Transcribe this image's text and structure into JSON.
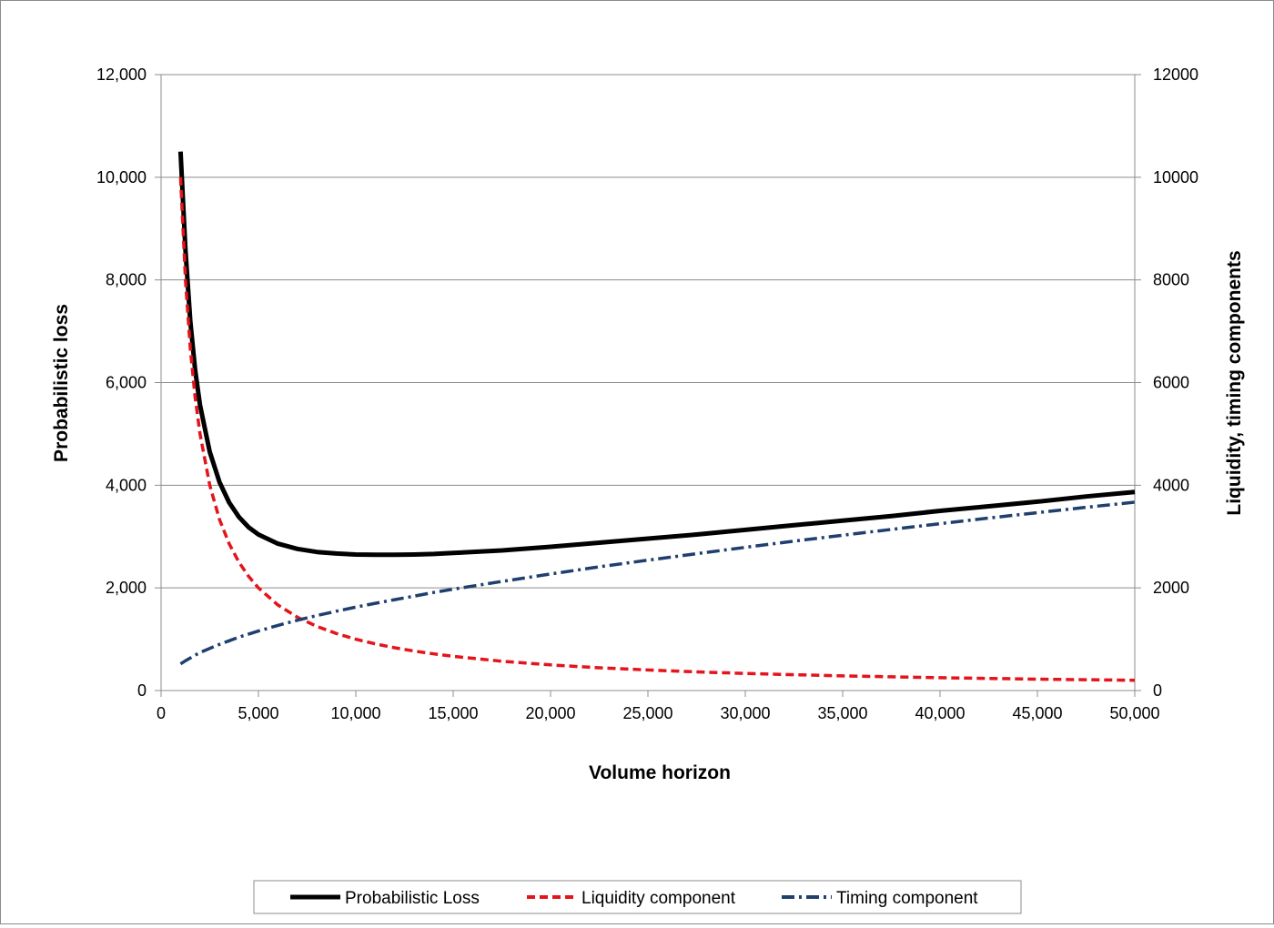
{
  "chart_data": {
    "type": "line",
    "title": "",
    "xlabel": "Volume horizon",
    "ylabel": "Probabilistic loss",
    "y2label": "Liquidity, timing components",
    "xlim": [
      0,
      50000
    ],
    "ylim": [
      0,
      12000
    ],
    "y2lim": [
      0,
      12000
    ],
    "x_ticks": [
      "0",
      "5,000",
      "10,000",
      "15,000",
      "20,000",
      "25,000",
      "30,000",
      "35,000",
      "40,000",
      "45,000",
      "50,000"
    ],
    "y_ticks": [
      "0",
      "2,000",
      "4,000",
      "6,000",
      "8,000",
      "10,000",
      "12,000"
    ],
    "y2_ticks": [
      "0",
      "2000",
      "4000",
      "6000",
      "8000",
      "10000",
      "12000"
    ],
    "grid": "horizontal",
    "legend_position": "bottom",
    "x": [
      1000,
      1250,
      1500,
      1750,
      2000,
      2500,
      3000,
      3500,
      4000,
      4500,
      5000,
      6000,
      7000,
      8000,
      9000,
      10000,
      11000,
      12000,
      13000,
      14000,
      15000,
      17500,
      20000,
      22500,
      25000,
      27500,
      30000,
      32500,
      35000,
      37500,
      40000,
      42500,
      45000,
      47500,
      50000
    ],
    "series": [
      {
        "name": "Probabilistic Loss",
        "axis": "left",
        "color": "#000000",
        "style": "solid",
        "values": [
          10500,
          8580,
          7200,
          6250,
          5560,
          4650,
          4060,
          3660,
          3380,
          3180,
          3040,
          2860,
          2760,
          2700,
          2670,
          2650,
          2645,
          2645,
          2650,
          2660,
          2680,
          2730,
          2800,
          2880,
          2960,
          3040,
          3130,
          3220,
          3310,
          3400,
          3500,
          3590,
          3680,
          3780,
          3870
        ]
      },
      {
        "name": "Liquidity component",
        "axis": "right",
        "color": "#e3141c",
        "style": "dashed",
        "values": [
          10000,
          8000,
          6667,
          5714,
          5000,
          4000,
          3333,
          2857,
          2500,
          2222,
          2000,
          1667,
          1429,
          1250,
          1111,
          1000,
          909,
          833,
          769,
          714,
          667,
          571,
          500,
          444,
          400,
          364,
          333,
          308,
          286,
          267,
          250,
          235,
          222,
          211,
          200
        ]
      },
      {
        "name": "Timing component",
        "axis": "right",
        "color": "#1f3f6e",
        "style": "dash-dot",
        "values": [
          520,
          580,
          635,
          690,
          740,
          820,
          900,
          970,
          1040,
          1100,
          1160,
          1270,
          1370,
          1460,
          1545,
          1625,
          1700,
          1770,
          1840,
          1910,
          1975,
          2125,
          2270,
          2410,
          2540,
          2665,
          2790,
          2910,
          3025,
          3140,
          3250,
          3360,
          3465,
          3570,
          3670
        ]
      }
    ]
  }
}
